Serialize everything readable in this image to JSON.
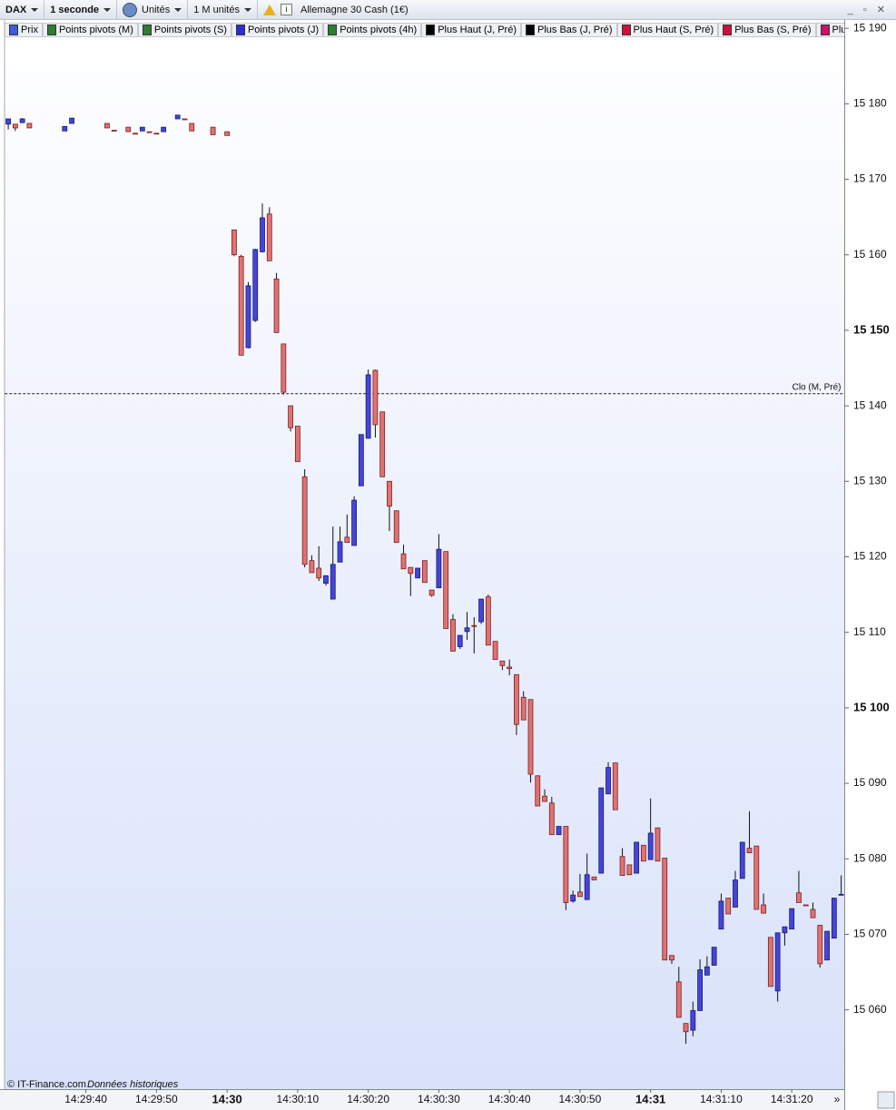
{
  "toolbar": {
    "symbol": "DAX",
    "interval": "1 seconde",
    "units": "Unités",
    "size": "1 M unités",
    "instrument": "Allemagne 30 Cash (1€)"
  },
  "legend": [
    {
      "name": "Prix",
      "color": "#3b5bdb"
    },
    {
      "name": "Points pivots (M)",
      "color": "#2e7d32"
    },
    {
      "name": "Points pivots (S)",
      "color": "#2e7d32"
    },
    {
      "name": "Points pivots (J)",
      "color": "#2b2bd0"
    },
    {
      "name": "Points pivots (4h)",
      "color": "#2e7d32"
    },
    {
      "name": "Plus Haut (J, Pré)",
      "color": "#000000"
    },
    {
      "name": "Plus Bas (J, Pré)",
      "color": "#000000"
    },
    {
      "name": "Plus Haut (S, Pré)",
      "color": "#d0103a"
    },
    {
      "name": "Plus Bas (S, Pré)",
      "color": "#d0103a"
    },
    {
      "name": "Plus Haut (M,",
      "color": "#d0106a"
    }
  ],
  "footer": {
    "source": "© IT-Finance.com",
    "note": "Données historiques"
  },
  "chart_data": {
    "type": "candlestick",
    "up_color": "#4545d8",
    "down_color": "#e07272",
    "categories": [
      null,
      null,
      null,
      null,
      null,
      null,
      null,
      null,
      null,
      null,
      null,
      "14:29:40",
      null,
      null,
      null,
      null,
      null,
      null,
      null,
      null,
      null,
      "14:29:50",
      null,
      null,
      null,
      null,
      null,
      null,
      null,
      null,
      null,
      "14:30",
      null,
      null,
      null,
      null,
      null,
      null,
      null,
      null,
      null,
      "14:30:10",
      null,
      null,
      null,
      null,
      null,
      null,
      null,
      null,
      null,
      "14:30:20",
      null,
      null,
      null,
      null,
      null,
      null,
      null,
      null,
      null,
      "14:30:30",
      null,
      null,
      null,
      null,
      null,
      null,
      null,
      null,
      null,
      "14:30:40",
      null,
      null,
      null,
      null,
      null,
      null,
      null,
      null,
      null,
      "14:30:50",
      null,
      null,
      null,
      null,
      null,
      null,
      null,
      null,
      null,
      "14:31",
      null,
      null,
      null,
      null,
      null,
      null,
      null,
      null,
      null,
      "14:31:10",
      null,
      null,
      null,
      null,
      null,
      null,
      null,
      null,
      null,
      "14:31:20",
      null,
      null,
      null,
      null,
      null,
      null,
      null
    ],
    "ohlc": [
      [
        15177.3,
        15178.0,
        15176.6,
        15178.0
      ],
      [
        15177.3,
        15177.3,
        15176.4,
        15176.8
      ],
      [
        15177.5,
        15178.1,
        15177.5,
        15178.0
      ],
      [
        15177.4,
        15177.4,
        15176.8,
        15176.8
      ],
      null,
      null,
      null,
      null,
      [
        15176.4,
        15177.0,
        15176.4,
        15177.0
      ],
      [
        15177.4,
        15178.1,
        15177.4,
        15178.1
      ],
      null,
      null,
      null,
      null,
      [
        15177.4,
        15177.4,
        15176.8,
        15176.8
      ],
      [
        15176.5,
        15176.5,
        15176.4,
        15176.4
      ],
      null,
      [
        15176.9,
        15176.9,
        15176.3,
        15176.3
      ],
      [
        15176.1,
        15176.1,
        15176.0,
        15176.0
      ],
      [
        15176.4,
        15176.9,
        15176.4,
        15176.9
      ],
      [
        15176.3,
        15176.3,
        15176.2,
        15176.2
      ],
      [
        15176.1,
        15176.1,
        15176.0,
        15176.0
      ],
      [
        15176.3,
        15176.9,
        15176.3,
        15176.9
      ],
      null,
      [
        15178.0,
        15178.5,
        15178.0,
        15178.5
      ],
      [
        15178.0,
        15178.0,
        15177.9,
        15177.9
      ],
      [
        15177.4,
        15177.4,
        15176.4,
        15176.4
      ],
      null,
      null,
      [
        15176.9,
        15176.9,
        15175.9,
        15175.9
      ],
      null,
      [
        15176.3,
        15176.3,
        15175.8,
        15175.8
      ],
      [
        15163.3,
        15163.3,
        15159.8,
        15160.0
      ],
      [
        15159.8,
        15160.0,
        15146.7,
        15146.7
      ],
      [
        15147.7,
        15156.4,
        15147.6,
        15155.9
      ],
      [
        15151.3,
        15160.8,
        15151.1,
        15160.7
      ],
      [
        15160.4,
        15166.8,
        15160.3,
        15164.9
      ],
      [
        15165.4,
        15166.3,
        15159.2,
        15159.2
      ],
      [
        15156.8,
        15157.6,
        15149.7,
        15149.7
      ],
      [
        15148.2,
        15148.2,
        15141.5,
        15141.8
      ],
      [
        15140.0,
        15140.0,
        15136.6,
        15137.1
      ],
      [
        15137.3,
        15137.3,
        15132.6,
        15132.6
      ],
      [
        15130.6,
        15131.6,
        15118.6,
        15119.0
      ],
      [
        15119.5,
        15120.2,
        15117.9,
        15117.9
      ],
      [
        15118.5,
        15121.4,
        15116.8,
        15117.2
      ],
      [
        15116.5,
        15117.5,
        15116.2,
        15117.5
      ],
      [
        15114.4,
        15124.0,
        15114.4,
        15119.0
      ],
      [
        15119.3,
        15124.0,
        15119.3,
        15122.0
      ],
      [
        15122.6,
        15125.6,
        15121.9,
        15121.9
      ],
      [
        15121.5,
        15128.0,
        15121.5,
        15127.5
      ],
      [
        15129.4,
        15136.2,
        15129.4,
        15136.2
      ],
      [
        15135.7,
        15144.8,
        15135.7,
        15144.1
      ],
      [
        15144.7,
        15144.8,
        15135.8,
        15137.5
      ],
      [
        15139.2,
        15139.2,
        15130.6,
        15130.6
      ],
      [
        15130.0,
        15130.0,
        15123.4,
        15126.7
      ],
      [
        15126.1,
        15126.1,
        15121.9,
        15121.9
      ],
      [
        15120.4,
        15121.6,
        15118.4,
        15118.4
      ],
      [
        15118.6,
        15118.6,
        15114.8,
        15117.8
      ],
      [
        15117.2,
        15118.5,
        15117.2,
        15118.5
      ],
      [
        15119.5,
        15119.5,
        15116.6,
        15116.6
      ],
      [
        15115.6,
        15115.6,
        15114.7,
        15114.9
      ],
      [
        15115.9,
        15123.0,
        15115.9,
        15121.0
      ],
      [
        15120.7,
        15120.7,
        15110.5,
        15110.5
      ],
      [
        15111.7,
        15112.4,
        15107.5,
        15107.5
      ],
      [
        15108.1,
        15109.6,
        15107.8,
        15109.6
      ],
      [
        15110.1,
        15112.7,
        15109.0,
        15110.6
      ],
      [
        15110.9,
        15112.0,
        15107.2,
        15110.8
      ],
      [
        15111.4,
        15114.4,
        15111.1,
        15114.4
      ],
      [
        15114.7,
        15115.0,
        15108.3,
        15108.3
      ],
      [
        15108.8,
        15108.8,
        15106.4,
        15106.4
      ],
      [
        15106.2,
        15106.2,
        15105.0,
        15105.6
      ],
      [
        15105.4,
        15106.4,
        15104.3,
        15105.2
      ],
      [
        15104.4,
        15104.4,
        15096.4,
        15097.8
      ],
      [
        15101.4,
        15102.2,
        15098.4,
        15098.4
      ],
      [
        15101.1,
        15101.1,
        15090.1,
        15091.2
      ],
      [
        15091.0,
        15091.0,
        15087.0,
        15087.0
      ],
      [
        15088.3,
        15089.2,
        15087.6,
        15087.6
      ],
      [
        15087.4,
        15088.2,
        15083.2,
        15083.2
      ],
      [
        15083.2,
        15084.3,
        15083.2,
        15084.3
      ],
      [
        15084.3,
        15084.3,
        15073.2,
        15074.2
      ],
      [
        15074.4,
        15075.8,
        15074.2,
        15075.2
      ],
      [
        15075.6,
        15078.0,
        15075.0,
        15075.0
      ],
      [
        15074.6,
        15080.7,
        15074.6,
        15077.9
      ],
      [
        15077.6,
        15077.6,
        15077.2,
        15077.2
      ],
      [
        15078.1,
        15089.4,
        15078.1,
        15089.4
      ],
      [
        15088.6,
        15092.8,
        15088.6,
        15092.1
      ],
      [
        15092.7,
        15092.7,
        15086.5,
        15086.5
      ],
      [
        15080.3,
        15081.4,
        15077.8,
        15077.8
      ],
      [
        15079.2,
        15079.2,
        15077.9,
        15077.9
      ],
      [
        15078.1,
        15082.2,
        15078.1,
        15082.2
      ],
      [
        15081.8,
        15081.8,
        15079.7,
        15079.7
      ],
      [
        15079.9,
        15088.0,
        15079.9,
        15083.4
      ],
      [
        15084.1,
        15084.1,
        15079.7,
        15079.7
      ],
      [
        15080.1,
        15080.1,
        15066.6,
        15066.6
      ],
      [
        15067.2,
        15067.2,
        15066.1,
        15066.6
      ],
      [
        15063.7,
        15065.7,
        15059.0,
        15059.0
      ],
      [
        15058.2,
        15058.2,
        15055.5,
        15057.1
      ],
      [
        15057.3,
        15061.1,
        15056.5,
        15059.9
      ],
      [
        15059.9,
        15066.7,
        15059.9,
        15065.3
      ],
      [
        15064.6,
        15067.1,
        15064.6,
        15065.7
      ],
      [
        15065.9,
        15068.3,
        15065.9,
        15068.3
      ],
      [
        15070.7,
        15075.4,
        15070.7,
        15074.4
      ],
      [
        15074.8,
        15074.8,
        15072.7,
        15072.7
      ],
      [
        15073.6,
        15078.4,
        15073.6,
        15077.2
      ],
      [
        15077.4,
        15082.2,
        15077.4,
        15082.2
      ],
      [
        15081.4,
        15086.3,
        15080.8,
        15080.8
      ],
      [
        15081.7,
        15081.7,
        15073.3,
        15073.3
      ],
      [
        15073.9,
        15075.4,
        15072.8,
        15072.8
      ],
      [
        15069.6,
        15069.6,
        15063.1,
        15063.1
      ],
      [
        15062.5,
        15070.2,
        15061.1,
        15070.2
      ],
      [
        15070.2,
        15071.0,
        15068.5,
        15071.0
      ],
      [
        15070.7,
        15073.4,
        15070.7,
        15073.4
      ],
      [
        15075.5,
        15078.4,
        15074.2,
        15074.2
      ],
      [
        15073.9,
        15073.9,
        15073.8,
        15073.8
      ],
      [
        15073.3,
        15074.2,
        15072.2,
        15072.2
      ],
      [
        15071.2,
        15071.2,
        15065.6,
        15066.1
      ],
      [
        15066.6,
        15070.4,
        15066.6,
        15070.4
      ],
      [
        15069.5,
        15074.8,
        15069.5,
        15074.8
      ],
      [
        15075.2,
        15077.8,
        15075.2,
        15075.3
      ]
    ],
    "ylim": [
      15049.5,
      15191.1
    ],
    "yticks": [
      {
        "value": 15060,
        "label": "15 060"
      },
      {
        "value": 15070,
        "label": "15 070"
      },
      {
        "value": 15080,
        "label": "15 080"
      },
      {
        "value": 15090,
        "label": "15 090"
      },
      {
        "value": 15100,
        "label": "15 100"
      },
      {
        "value": 15110,
        "label": "15 110"
      },
      {
        "value": 15120,
        "label": "15 120"
      },
      {
        "value": 15130,
        "label": "15 130"
      },
      {
        "value": 15140,
        "label": "15 140"
      },
      {
        "value": 15150,
        "label": "15 150"
      },
      {
        "value": 15160,
        "label": "15 160"
      },
      {
        "value": 15170,
        "label": "15 170"
      },
      {
        "value": 15180,
        "label": "15 180"
      },
      {
        "value": 15190,
        "label": "15 190"
      }
    ],
    "reference_lines": [
      {
        "label": "Clo (M, Pré)",
        "value": 15141.6
      }
    ]
  }
}
